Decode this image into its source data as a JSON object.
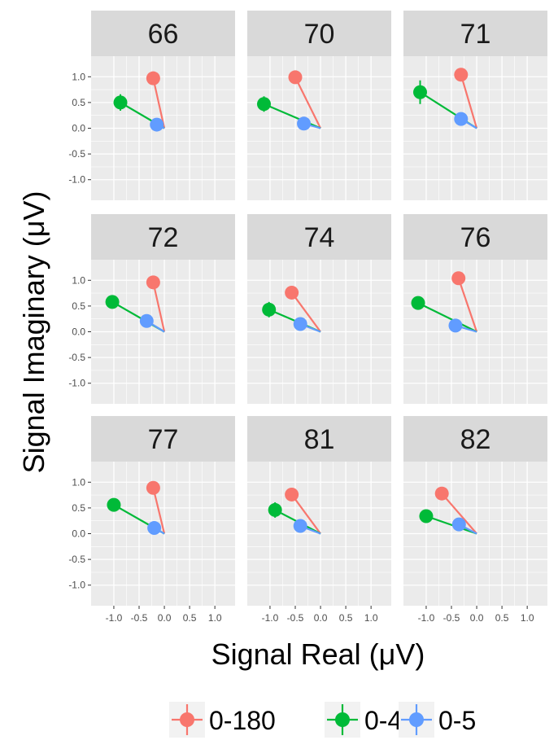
{
  "chart_data": {
    "type": "scatter",
    "xlabel": "Signal Real (μV)",
    "ylabel": "Signal Imaginary (μV)",
    "xlim": [
      -1.45,
      1.4
    ],
    "ylim": [
      -1.4,
      1.4
    ],
    "x_ticks": [
      -1.0,
      -0.5,
      0.0,
      0.5,
      1.0
    ],
    "x_tick_labels": [
      "-1.0",
      "-0.5",
      "0.0",
      "0.5",
      "1.0"
    ],
    "y_ticks": [
      1.0,
      0.5,
      0.0,
      -0.5,
      -1.0
    ],
    "y_tick_labels": [
      "1.0",
      "0.5",
      "0.0",
      "-0.5",
      "-1.0"
    ],
    "grid": true,
    "legend_position": "bottom",
    "series": [
      {
        "name": "0-180",
        "color": "#F8766D"
      },
      {
        "name": "0-45",
        "color": "#00BA38"
      },
      {
        "name": "0-5",
        "color": "#619CFF"
      }
    ],
    "panels": [
      {
        "title": "66",
        "points": [
          {
            "series": "0-180",
            "x": -0.22,
            "y": 0.97,
            "err": 0.05
          },
          {
            "series": "0-45",
            "x": -0.87,
            "y": 0.5,
            "err": 0.16
          },
          {
            "series": "0-5",
            "x": -0.15,
            "y": 0.07,
            "err": 0.04
          }
        ]
      },
      {
        "title": "70",
        "points": [
          {
            "series": "0-180",
            "x": -0.5,
            "y": 0.99,
            "err": 0.05
          },
          {
            "series": "0-45",
            "x": -1.12,
            "y": 0.47,
            "err": 0.15
          },
          {
            "series": "0-5",
            "x": -0.33,
            "y": 0.09,
            "err": 0.04
          }
        ]
      },
      {
        "title": "71",
        "points": [
          {
            "series": "0-180",
            "x": -0.31,
            "y": 1.04,
            "err": 0.05
          },
          {
            "series": "0-45",
            "x": -1.12,
            "y": 0.7,
            "err": 0.23
          },
          {
            "series": "0-5",
            "x": -0.31,
            "y": 0.18,
            "err": 0.04
          }
        ]
      },
      {
        "title": "72",
        "points": [
          {
            "series": "0-180",
            "x": -0.22,
            "y": 0.96,
            "err": 0.05
          },
          {
            "series": "0-45",
            "x": -1.03,
            "y": 0.58,
            "err": 0.06
          },
          {
            "series": "0-5",
            "x": -0.35,
            "y": 0.21,
            "err": 0.04
          }
        ]
      },
      {
        "title": "74",
        "points": [
          {
            "series": "0-180",
            "x": -0.57,
            "y": 0.76,
            "err": 0.05
          },
          {
            "series": "0-45",
            "x": -1.02,
            "y": 0.43,
            "err": 0.15
          },
          {
            "series": "0-5",
            "x": -0.4,
            "y": 0.15,
            "err": 0.04
          }
        ]
      },
      {
        "title": "76",
        "points": [
          {
            "series": "0-180",
            "x": -0.36,
            "y": 1.04,
            "err": 0.05
          },
          {
            "series": "0-45",
            "x": -1.16,
            "y": 0.56,
            "err": 0.07
          },
          {
            "series": "0-5",
            "x": -0.42,
            "y": 0.12,
            "err": 0.04
          }
        ]
      },
      {
        "title": "77",
        "points": [
          {
            "series": "0-180",
            "x": -0.22,
            "y": 0.89,
            "err": 0.05
          },
          {
            "series": "0-45",
            "x": -1.0,
            "y": 0.56,
            "err": 0.06
          },
          {
            "series": "0-5",
            "x": -0.2,
            "y": 0.11,
            "err": 0.04
          }
        ]
      },
      {
        "title": "81",
        "points": [
          {
            "series": "0-180",
            "x": -0.57,
            "y": 0.76,
            "err": 0.05
          },
          {
            "series": "0-45",
            "x": -0.9,
            "y": 0.46,
            "err": 0.15
          },
          {
            "series": "0-5",
            "x": -0.4,
            "y": 0.15,
            "err": 0.04
          }
        ]
      },
      {
        "title": "82",
        "points": [
          {
            "series": "0-180",
            "x": -0.69,
            "y": 0.78,
            "err": 0.05
          },
          {
            "series": "0-45",
            "x": -1.0,
            "y": 0.34,
            "err": 0.06
          },
          {
            "series": "0-5",
            "x": -0.35,
            "y": 0.18,
            "err": 0.04
          }
        ]
      }
    ]
  }
}
